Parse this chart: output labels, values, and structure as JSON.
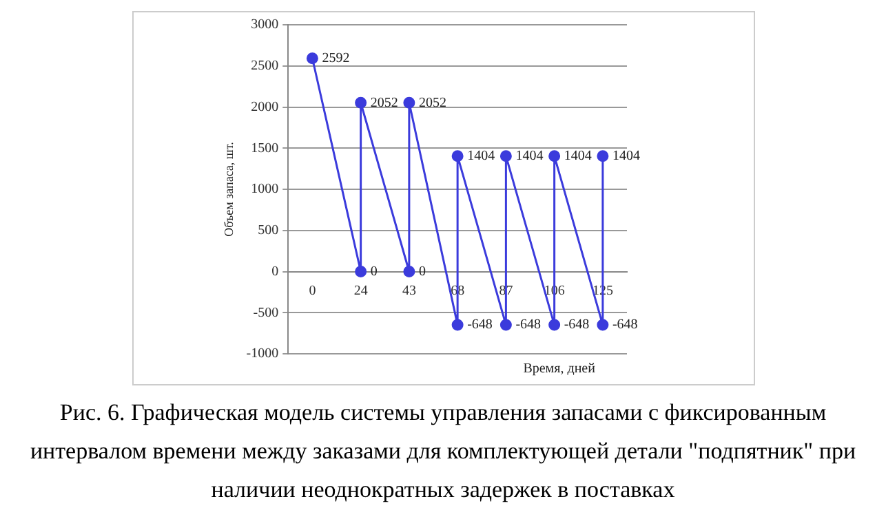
{
  "chart_data": {
    "type": "line",
    "xlabel": "Время, дней",
    "ylabel": "Объем запаса, шт.",
    "categories": [
      "0",
      "24",
      "43",
      "68",
      "87",
      "106",
      "125"
    ],
    "series": [
      {
        "color": "#3b3bdc",
        "x": [
          "0",
          "24",
          "24",
          "43",
          "43",
          "68",
          "68",
          "87",
          "87",
          "106",
          "106",
          "125",
          "125"
        ],
        "values": [
          2592,
          0,
          2052,
          0,
          2052,
          -648,
          1404,
          -648,
          1404,
          -648,
          1404,
          -648,
          1404
        ]
      }
    ],
    "ylim": [
      -1000,
      3000
    ],
    "yticks": [
      -1000,
      -500,
      0,
      500,
      1000,
      1500,
      2000,
      2500,
      3000
    ],
    "grid": "y",
    "marker": "circle",
    "line_style": "solid",
    "data_labels": true,
    "legend": false,
    "annotations": [
      "Рис. 6. Графическая модель системы управления запасами с фиксированным интервалом времени между заказами для комплектующей детали \"подпятник\" при наличии неоднократных задержек в поставках"
    ]
  }
}
